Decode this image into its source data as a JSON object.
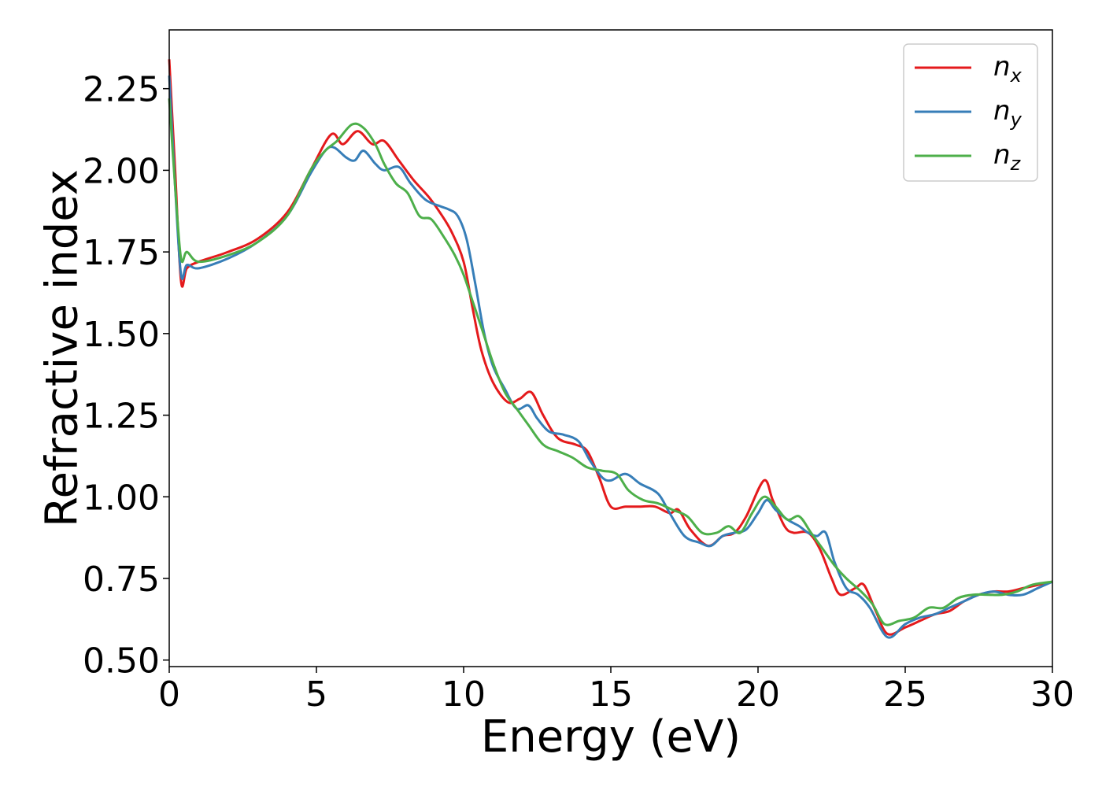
{
  "chart_data": {
    "type": "line",
    "xlabel": "Energy (eV)",
    "ylabel": "Refractive index",
    "xlim": [
      0,
      30
    ],
    "ylim": [
      0.48,
      2.43
    ],
    "x_ticks": [
      0,
      5,
      10,
      15,
      20,
      25,
      30
    ],
    "x_tick_labels": [
      "0",
      "5",
      "10",
      "15",
      "20",
      "25",
      "30"
    ],
    "y_ticks": [
      0.5,
      0.75,
      1.0,
      1.25,
      1.5,
      1.75,
      2.0,
      2.25
    ],
    "y_tick_labels": [
      "0.50",
      "0.75",
      "1.00",
      "1.25",
      "1.50",
      "1.75",
      "2.00",
      "2.25"
    ],
    "grid": false,
    "legend_position": "top-right",
    "series": [
      {
        "name": "n",
        "subscript": "x",
        "color": "#e41a1c",
        "points": [
          [
            0,
            2.34
          ],
          [
            0.2,
            2.0
          ],
          [
            0.4,
            1.66
          ],
          [
            0.6,
            1.7
          ],
          [
            1.0,
            1.72
          ],
          [
            2.0,
            1.75
          ],
          [
            3.0,
            1.79
          ],
          [
            4.0,
            1.87
          ],
          [
            4.8,
            2.0
          ],
          [
            5.5,
            2.11
          ],
          [
            5.9,
            2.08
          ],
          [
            6.4,
            2.12
          ],
          [
            6.9,
            2.08
          ],
          [
            7.3,
            2.09
          ],
          [
            7.8,
            2.03
          ],
          [
            8.3,
            1.97
          ],
          [
            8.8,
            1.92
          ],
          [
            9.2,
            1.87
          ],
          [
            9.6,
            1.81
          ],
          [
            10.0,
            1.72
          ],
          [
            10.3,
            1.58
          ],
          [
            10.6,
            1.45
          ],
          [
            11.0,
            1.35
          ],
          [
            11.5,
            1.29
          ],
          [
            11.9,
            1.3
          ],
          [
            12.3,
            1.32
          ],
          [
            12.7,
            1.25
          ],
          [
            13.2,
            1.18
          ],
          [
            13.8,
            1.16
          ],
          [
            14.2,
            1.14
          ],
          [
            14.6,
            1.06
          ],
          [
            15.0,
            0.97
          ],
          [
            15.5,
            0.97
          ],
          [
            16.0,
            0.97
          ],
          [
            16.5,
            0.97
          ],
          [
            17.0,
            0.95
          ],
          [
            17.3,
            0.96
          ],
          [
            17.7,
            0.9
          ],
          [
            18.3,
            0.85
          ],
          [
            18.8,
            0.88
          ],
          [
            19.2,
            0.89
          ],
          [
            19.6,
            0.94
          ],
          [
            20.2,
            1.05
          ],
          [
            20.5,
            0.99
          ],
          [
            20.9,
            0.91
          ],
          [
            21.2,
            0.89
          ],
          [
            21.7,
            0.89
          ],
          [
            22.1,
            0.84
          ],
          [
            22.5,
            0.75
          ],
          [
            22.8,
            0.7
          ],
          [
            23.3,
            0.72
          ],
          [
            23.6,
            0.73
          ],
          [
            24.0,
            0.65
          ],
          [
            24.4,
            0.58
          ],
          [
            25.0,
            0.6
          ],
          [
            25.5,
            0.62
          ],
          [
            26.0,
            0.64
          ],
          [
            26.5,
            0.65
          ],
          [
            27.0,
            0.68
          ],
          [
            27.5,
            0.7
          ],
          [
            28.0,
            0.71
          ],
          [
            28.5,
            0.71
          ],
          [
            29.0,
            0.72
          ],
          [
            29.5,
            0.73
          ],
          [
            30.0,
            0.74
          ]
        ]
      },
      {
        "name": "n",
        "subscript": "y",
        "color": "#377eb8",
        "points": [
          [
            0,
            2.29
          ],
          [
            0.2,
            1.95
          ],
          [
            0.4,
            1.68
          ],
          [
            0.6,
            1.71
          ],
          [
            1.0,
            1.7
          ],
          [
            2.0,
            1.73
          ],
          [
            3.0,
            1.78
          ],
          [
            4.0,
            1.86
          ],
          [
            4.8,
            1.99
          ],
          [
            5.3,
            2.06
          ],
          [
            5.6,
            2.07
          ],
          [
            6.0,
            2.04
          ],
          [
            6.3,
            2.03
          ],
          [
            6.6,
            2.06
          ],
          [
            7.0,
            2.02
          ],
          [
            7.3,
            2.0
          ],
          [
            7.8,
            2.01
          ],
          [
            8.2,
            1.96
          ],
          [
            8.7,
            1.91
          ],
          [
            9.2,
            1.89
          ],
          [
            9.5,
            1.88
          ],
          [
            9.8,
            1.86
          ],
          [
            10.1,
            1.79
          ],
          [
            10.4,
            1.65
          ],
          [
            10.7,
            1.5
          ],
          [
            11.0,
            1.4
          ],
          [
            11.4,
            1.33
          ],
          [
            11.8,
            1.27
          ],
          [
            12.2,
            1.28
          ],
          [
            12.5,
            1.24
          ],
          [
            12.9,
            1.2
          ],
          [
            13.4,
            1.19
          ],
          [
            13.9,
            1.17
          ],
          [
            14.3,
            1.11
          ],
          [
            14.7,
            1.06
          ],
          [
            15.0,
            1.05
          ],
          [
            15.5,
            1.07
          ],
          [
            16.0,
            1.04
          ],
          [
            16.6,
            1.01
          ],
          [
            17.0,
            0.95
          ],
          [
            17.5,
            0.88
          ],
          [
            18.0,
            0.86
          ],
          [
            18.4,
            0.85
          ],
          [
            18.8,
            0.88
          ],
          [
            19.2,
            0.89
          ],
          [
            19.6,
            0.9
          ],
          [
            20.0,
            0.95
          ],
          [
            20.3,
            0.99
          ],
          [
            20.6,
            0.96
          ],
          [
            21.0,
            0.93
          ],
          [
            21.4,
            0.91
          ],
          [
            21.7,
            0.89
          ],
          [
            22.0,
            0.88
          ],
          [
            22.3,
            0.89
          ],
          [
            22.6,
            0.8
          ],
          [
            23.0,
            0.72
          ],
          [
            23.4,
            0.7
          ],
          [
            23.8,
            0.66
          ],
          [
            24.4,
            0.57
          ],
          [
            25.0,
            0.61
          ],
          [
            25.5,
            0.63
          ],
          [
            26.0,
            0.64
          ],
          [
            26.5,
            0.66
          ],
          [
            27.0,
            0.68
          ],
          [
            27.5,
            0.7
          ],
          [
            28.0,
            0.71
          ],
          [
            28.5,
            0.7
          ],
          [
            29.0,
            0.7
          ],
          [
            29.5,
            0.72
          ],
          [
            30.0,
            0.74
          ]
        ]
      },
      {
        "name": "n",
        "subscript": "z",
        "color": "#4daf4a",
        "points": [
          [
            0,
            2.22
          ],
          [
            0.2,
            1.95
          ],
          [
            0.4,
            1.73
          ],
          [
            0.6,
            1.75
          ],
          [
            1.0,
            1.72
          ],
          [
            2.0,
            1.74
          ],
          [
            3.0,
            1.78
          ],
          [
            4.0,
            1.86
          ],
          [
            4.8,
            2.0
          ],
          [
            5.3,
            2.06
          ],
          [
            5.7,
            2.09
          ],
          [
            6.2,
            2.14
          ],
          [
            6.6,
            2.13
          ],
          [
            7.0,
            2.08
          ],
          [
            7.3,
            2.02
          ],
          [
            7.7,
            1.96
          ],
          [
            8.1,
            1.93
          ],
          [
            8.5,
            1.86
          ],
          [
            8.9,
            1.85
          ],
          [
            9.3,
            1.8
          ],
          [
            9.7,
            1.74
          ],
          [
            10.0,
            1.68
          ],
          [
            10.3,
            1.6
          ],
          [
            10.6,
            1.52
          ],
          [
            11.0,
            1.41
          ],
          [
            11.4,
            1.32
          ],
          [
            11.8,
            1.27
          ],
          [
            12.2,
            1.22
          ],
          [
            12.7,
            1.16
          ],
          [
            13.2,
            1.14
          ],
          [
            13.7,
            1.12
          ],
          [
            14.2,
            1.09
          ],
          [
            14.7,
            1.08
          ],
          [
            15.2,
            1.07
          ],
          [
            15.6,
            1.02
          ],
          [
            16.1,
            0.99
          ],
          [
            16.6,
            0.98
          ],
          [
            17.1,
            0.96
          ],
          [
            17.6,
            0.94
          ],
          [
            18.1,
            0.89
          ],
          [
            18.6,
            0.89
          ],
          [
            19.0,
            0.91
          ],
          [
            19.4,
            0.89
          ],
          [
            19.8,
            0.95
          ],
          [
            20.2,
            1.0
          ],
          [
            20.6,
            0.97
          ],
          [
            21.0,
            0.93
          ],
          [
            21.4,
            0.94
          ],
          [
            21.8,
            0.89
          ],
          [
            22.2,
            0.84
          ],
          [
            22.6,
            0.79
          ],
          [
            23.0,
            0.75
          ],
          [
            23.5,
            0.71
          ],
          [
            23.9,
            0.67
          ],
          [
            24.3,
            0.61
          ],
          [
            24.8,
            0.62
          ],
          [
            25.3,
            0.63
          ],
          [
            25.8,
            0.66
          ],
          [
            26.3,
            0.66
          ],
          [
            26.8,
            0.69
          ],
          [
            27.3,
            0.7
          ],
          [
            27.8,
            0.7
          ],
          [
            28.3,
            0.7
          ],
          [
            28.8,
            0.71
          ],
          [
            29.3,
            0.73
          ],
          [
            30.0,
            0.74
          ]
        ]
      }
    ]
  }
}
